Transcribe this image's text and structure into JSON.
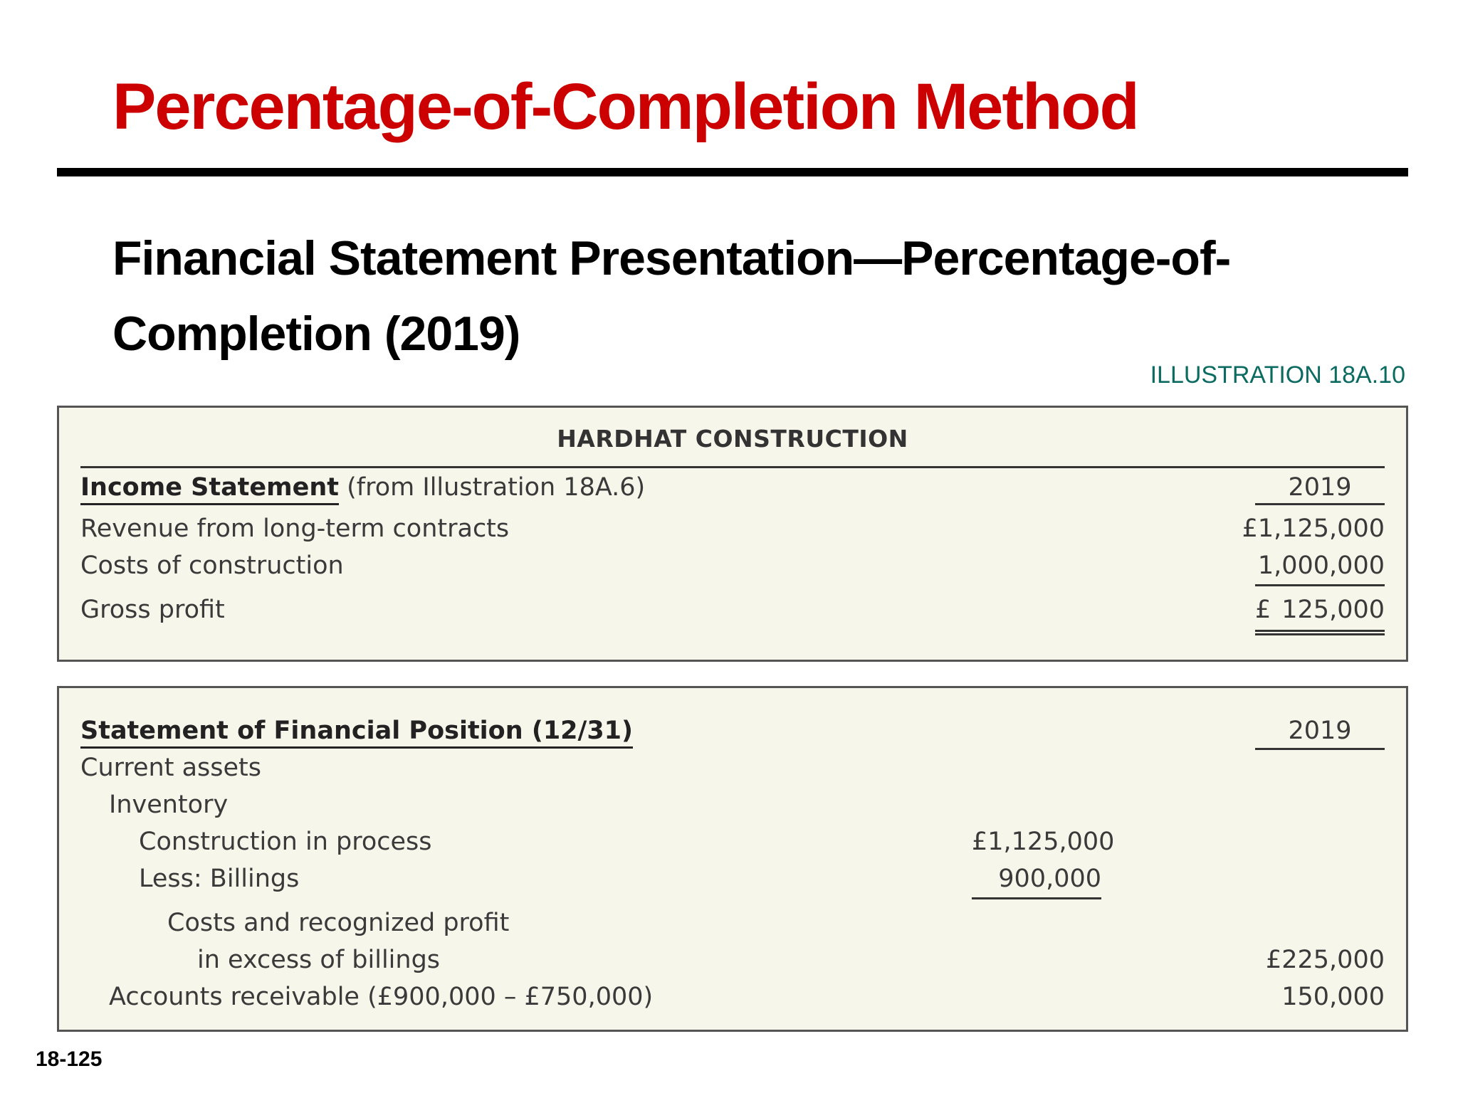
{
  "slide": {
    "title": "Percentage-of-Completion Method",
    "subtitle": "Financial Statement Presentation—Percentage-of-Completion (2019)",
    "illustration": "ILLUSTRATION 18A.10",
    "page_number": "18-125"
  },
  "income_statement": {
    "company": "HARDHAT CONSTRUCTION",
    "heading": "Income Statement",
    "heading_note": "(from Illustration 18A.6)",
    "year": "2019",
    "rows": [
      {
        "label": "Revenue from long-term contracts",
        "value": "£1,125,000"
      },
      {
        "label": "Costs of construction",
        "value": "1,000,000"
      },
      {
        "label": "Gross profit",
        "currency": "£",
        "value": "125,000"
      }
    ]
  },
  "financial_position": {
    "heading": "Statement of Financial Position (12/31)",
    "year": "2019",
    "rows": [
      {
        "label": "Current assets"
      },
      {
        "label": "Inventory"
      },
      {
        "label": "Construction in process",
        "inner_value": "£1,125,000"
      },
      {
        "label": "Less: Billings",
        "inner_value": "900,000"
      },
      {
        "label": "Costs and recognized profit"
      },
      {
        "label": "in excess of billings",
        "value": "£225,000"
      },
      {
        "label": "Accounts receivable (£900,000 – £750,000)",
        "value": "150,000"
      }
    ]
  }
}
